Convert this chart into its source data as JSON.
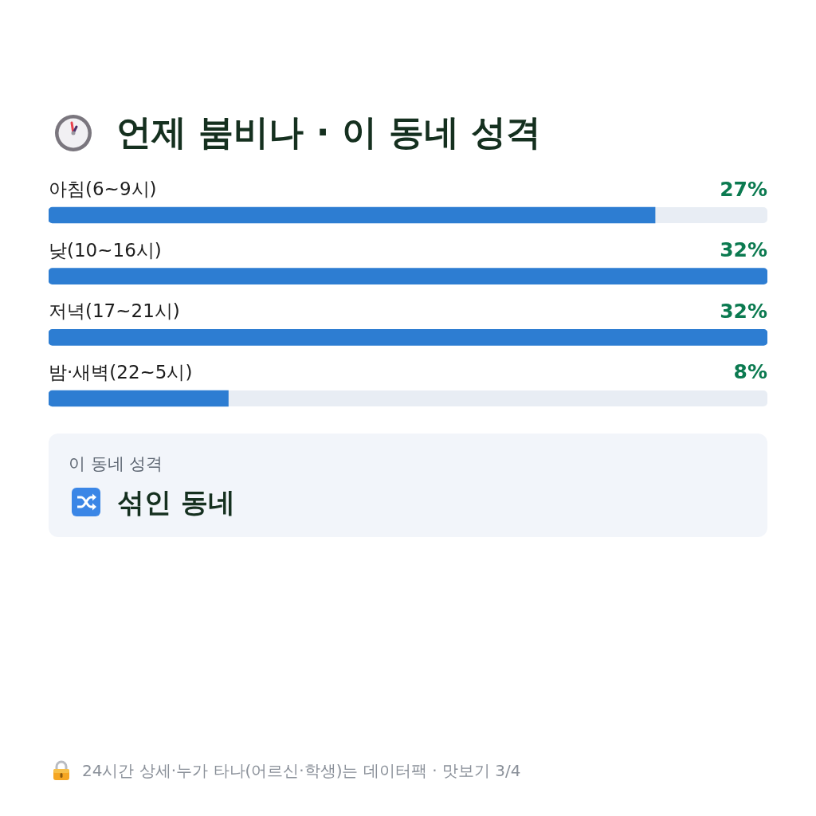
{
  "chart_data": [
    {
      "type": "bar",
      "orientation": "horizontal",
      "title": "언제 붐비나 · 이 동네 성격",
      "categories": [
        "아침(6~9시)",
        "낮(10~16시)",
        "저녁(17~21시)",
        "밤·새벽(22~5시)"
      ],
      "values": [
        27,
        32,
        32,
        8
      ],
      "value_labels": [
        "27%",
        "32%",
        "32%",
        "8%"
      ],
      "color": "#2d7dd2",
      "xlim": [
        0,
        32
      ],
      "tick_labels": "y",
      "annotations": [
        "24시간 상세·누가 타나(어르신·학생)는 데이터팩 · 맛보기 3/4"
      ]
    },
    {
      "type": "other",
      "title": "이 동네 성격",
      "annotations": [
        "섞인 동네"
      ]
    }
  ]
}
